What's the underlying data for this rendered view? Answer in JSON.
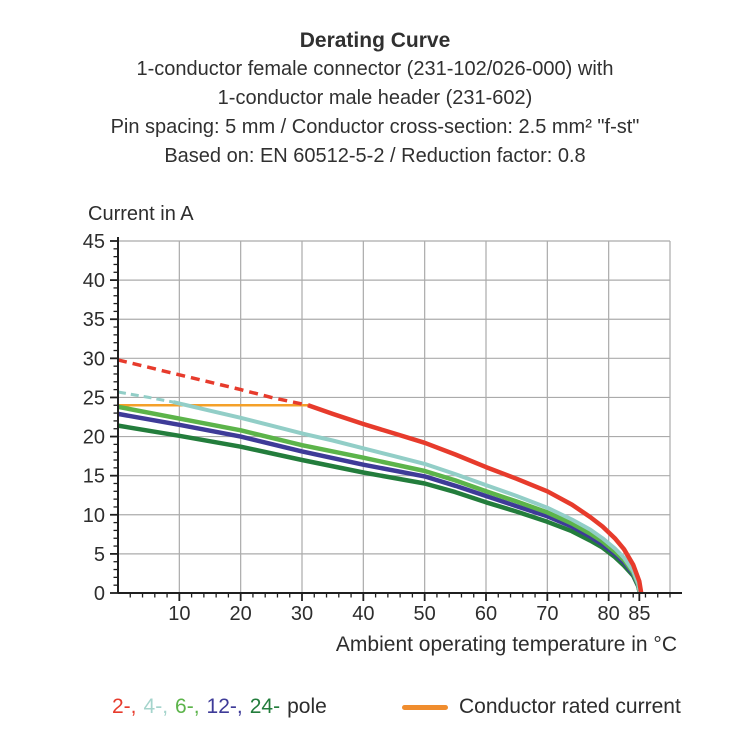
{
  "header": {
    "title": "Derating Curve",
    "subtitle1": "1-conductor female connector (231-102/026-000) with",
    "subtitle2": "1-conductor male header (231-602)",
    "subtitle3": "Pin spacing: 5 mm / Conductor cross-section: 2.5 mm² \"f-st\"",
    "subtitle4": "Based on: EN 60512-5-2 / Reduction factor: 0.8"
  },
  "chart_data": {
    "type": "line",
    "title": "Derating Curve",
    "xlabel": "Ambient operating temperature in °C",
    "ylabel": "Current in A",
    "xlim": [
      0,
      90
    ],
    "ylim": [
      0,
      45
    ],
    "x_tick_labels": [
      10,
      20,
      30,
      40,
      50,
      60,
      70,
      80,
      85
    ],
    "x_gridlines": [
      10,
      20,
      30,
      40,
      50,
      60,
      70,
      80
    ],
    "y_tick_labels": [
      0,
      5,
      10,
      15,
      20,
      25,
      30,
      35,
      40,
      45
    ],
    "y_gridlines": [
      5,
      10,
      15,
      20,
      25,
      30,
      35,
      40,
      45
    ],
    "x_minor_step": 2,
    "y_minor_step": 1,
    "grid_color": "#ababab",
    "axis_color": "#1f1f1f",
    "rated_current_line": {
      "name": "Conductor rated current",
      "color": "#f4a029",
      "width": 2.5,
      "points": [
        [
          0,
          24
        ],
        [
          31,
          24
        ]
      ]
    },
    "series": [
      {
        "name": "24-pole",
        "color": "#237d3c",
        "width": 4.5,
        "points": [
          [
            0,
            21.4
          ],
          [
            10,
            20.1
          ],
          [
            20,
            18.7
          ],
          [
            30,
            17.0
          ],
          [
            40,
            15.4
          ],
          [
            50,
            14.0
          ],
          [
            55,
            12.9
          ],
          [
            60,
            11.6
          ],
          [
            65,
            10.4
          ],
          [
            70,
            9.1
          ],
          [
            74,
            7.9
          ],
          [
            77,
            6.7
          ],
          [
            79,
            5.8
          ],
          [
            81,
            4.6
          ],
          [
            82.5,
            3.5
          ],
          [
            84,
            2.2
          ],
          [
            84.8,
            0.9
          ],
          [
            85.1,
            0
          ]
        ]
      },
      {
        "name": "12-pole",
        "color": "#3e3b98",
        "width": 4.5,
        "points": [
          [
            0,
            22.9
          ],
          [
            10,
            21.5
          ],
          [
            20,
            20.0
          ],
          [
            30,
            18.1
          ],
          [
            40,
            16.4
          ],
          [
            50,
            14.9
          ],
          [
            55,
            13.7
          ],
          [
            60,
            12.4
          ],
          [
            65,
            11.1
          ],
          [
            70,
            9.8
          ],
          [
            74,
            8.5
          ],
          [
            77,
            7.2
          ],
          [
            79,
            6.2
          ],
          [
            81,
            5.0
          ],
          [
            82.5,
            3.9
          ],
          [
            84,
            2.4
          ],
          [
            84.8,
            1.0
          ],
          [
            85.1,
            0
          ]
        ]
      },
      {
        "name": "6-pole",
        "color": "#5cb44a",
        "width": 4.5,
        "points": [
          [
            0,
            23.8
          ],
          [
            10,
            22.3
          ],
          [
            20,
            20.8
          ],
          [
            30,
            18.9
          ],
          [
            40,
            17.3
          ],
          [
            50,
            15.6
          ],
          [
            55,
            14.4
          ],
          [
            60,
            13.0
          ],
          [
            65,
            11.7
          ],
          [
            70,
            10.3
          ],
          [
            74,
            8.9
          ],
          [
            77,
            7.6
          ],
          [
            79,
            6.6
          ],
          [
            81,
            5.3
          ],
          [
            82.5,
            4.2
          ],
          [
            84,
            2.6
          ],
          [
            84.8,
            1.1
          ],
          [
            85.1,
            0
          ]
        ]
      },
      {
        "name": "4-pole",
        "color": "#92cec7",
        "width": 4,
        "dash_width": 3,
        "dash_pattern": "8 5",
        "dashed_points": [
          [
            0,
            25.7
          ],
          [
            5,
            25.0
          ],
          [
            9,
            24.4
          ]
        ],
        "points": [
          [
            9,
            24.4
          ],
          [
            15,
            23.3
          ],
          [
            20,
            22.4
          ],
          [
            25,
            21.4
          ],
          [
            30,
            20.4
          ],
          [
            35,
            19.5
          ],
          [
            40,
            18.5
          ],
          [
            45,
            17.5
          ],
          [
            50,
            16.5
          ],
          [
            55,
            15.2
          ],
          [
            60,
            13.8
          ],
          [
            65,
            12.4
          ],
          [
            70,
            10.9
          ],
          [
            74,
            9.4
          ],
          [
            77,
            8.1
          ],
          [
            79,
            7.0
          ],
          [
            81,
            5.7
          ],
          [
            82.5,
            4.5
          ],
          [
            84,
            2.8
          ],
          [
            84.8,
            1.2
          ],
          [
            85.1,
            0
          ]
        ]
      },
      {
        "name": "2-pole",
        "color": "#e73b2c",
        "width": 4.5,
        "dash_width": 3.5,
        "dash_pattern": "9 6",
        "dashed_points": [
          [
            0,
            29.8
          ],
          [
            10,
            27.9
          ],
          [
            20,
            26.0
          ],
          [
            25,
            25.0
          ],
          [
            31,
            24.0
          ]
        ],
        "points": [
          [
            31,
            24.0
          ],
          [
            35,
            22.9
          ],
          [
            40,
            21.6
          ],
          [
            45,
            20.4
          ],
          [
            50,
            19.2
          ],
          [
            55,
            17.7
          ],
          [
            60,
            16.1
          ],
          [
            65,
            14.6
          ],
          [
            70,
            13.0
          ],
          [
            74,
            11.3
          ],
          [
            77,
            9.7
          ],
          [
            79,
            8.5
          ],
          [
            81,
            7.0
          ],
          [
            82.5,
            5.6
          ],
          [
            84,
            3.6
          ],
          [
            85,
            1.5
          ],
          [
            85.3,
            0
          ]
        ]
      }
    ]
  },
  "legend": {
    "poles": [
      {
        "label": "2-,",
        "color": "#e73b2c"
      },
      {
        "label": "4-,",
        "color": "#a5d4cc"
      },
      {
        "label": "6-,",
        "color": "#5cb44a"
      },
      {
        "label": "12-,",
        "color": "#3e3b98"
      },
      {
        "label": "24-",
        "color": "#237d3c"
      }
    ],
    "pole_suffix": "pole",
    "rated_label": "Conductor rated current",
    "rated_color": "#f08d2e"
  }
}
